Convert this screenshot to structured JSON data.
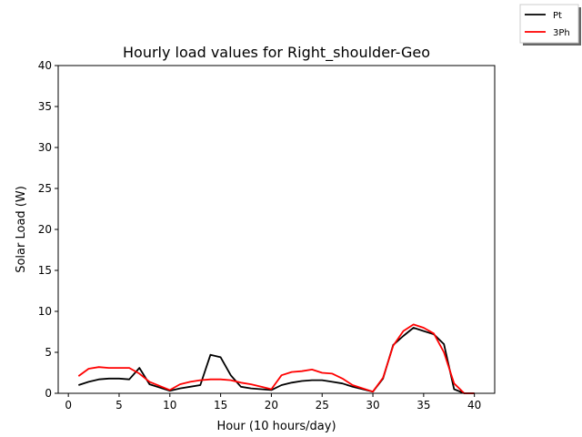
{
  "chart_data": {
    "type": "line",
    "title": "Hourly load values for Right_shoulder-Geo",
    "xlabel": "Hour (10 hours/day)",
    "ylabel": "Solar Load (W)",
    "xlim": [
      -1,
      42
    ],
    "ylim": [
      0,
      40
    ],
    "xticks": [
      0,
      5,
      10,
      15,
      20,
      25,
      30,
      35,
      40
    ],
    "yticks": [
      0,
      5,
      10,
      15,
      20,
      25,
      30,
      35,
      40
    ],
    "grid": false,
    "legend_placement": "top-right",
    "series": [
      {
        "name": "Pt",
        "color": "#000000",
        "x": [
          1,
          2,
          3,
          4,
          5,
          6,
          7,
          8,
          9,
          10,
          11,
          12,
          13,
          14,
          15,
          16,
          17,
          18,
          19,
          20,
          21,
          22,
          23,
          24,
          25,
          26,
          27,
          28,
          29,
          30,
          31,
          32,
          33,
          34,
          35,
          36,
          37,
          38,
          39,
          40
        ],
        "y": [
          1.0,
          1.4,
          1.7,
          1.8,
          1.8,
          1.7,
          3.1,
          1.1,
          0.7,
          0.3,
          0.6,
          0.8,
          1.0,
          4.7,
          4.4,
          2.2,
          0.8,
          0.6,
          0.5,
          0.4,
          1.0,
          1.3,
          1.5,
          1.6,
          1.6,
          1.4,
          1.2,
          0.8,
          0.5,
          0.2,
          1.8,
          5.9,
          7.0,
          8.0,
          7.6,
          7.2,
          6.0,
          0.5,
          0.0,
          0.0
        ]
      },
      {
        "name": "3Ph",
        "color": "#ff0000",
        "x": [
          1,
          2,
          3,
          4,
          5,
          6,
          7,
          8,
          9,
          10,
          11,
          12,
          13,
          14,
          15,
          16,
          17,
          18,
          19,
          20,
          21,
          22,
          23,
          24,
          25,
          26,
          27,
          28,
          29,
          30,
          31,
          32,
          33,
          34,
          35,
          36,
          37,
          38,
          39,
          40
        ],
        "y": [
          2.1,
          3.0,
          3.2,
          3.1,
          3.1,
          3.1,
          2.4,
          1.4,
          0.9,
          0.4,
          1.1,
          1.4,
          1.6,
          1.7,
          1.7,
          1.6,
          1.3,
          1.1,
          0.8,
          0.5,
          2.2,
          2.6,
          2.7,
          2.9,
          2.5,
          2.4,
          1.8,
          1.0,
          0.6,
          0.2,
          1.9,
          5.8,
          7.6,
          8.4,
          8.0,
          7.3,
          5.0,
          1.2,
          0.0,
          0.0
        ]
      }
    ]
  }
}
